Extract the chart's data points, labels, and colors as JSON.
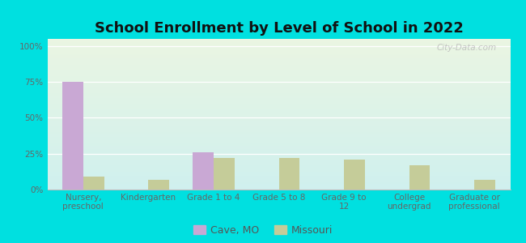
{
  "title": "School Enrollment by Level of School in 2022",
  "categories": [
    "Nursery,\npreschool",
    "Kindergarten",
    "Grade 1 to 4",
    "Grade 5 to 8",
    "Grade 9 to\n12",
    "College\nundergrad",
    "Graduate or\nprofessional"
  ],
  "cave_mo": [
    75,
    0,
    26,
    0,
    0,
    0,
    0
  ],
  "missouri": [
    9,
    7,
    22,
    22,
    21,
    17,
    7
  ],
  "cave_color": "#c9a8d4",
  "missouri_color": "#c5cc99",
  "title_fontsize": 13,
  "tick_fontsize": 7.5,
  "legend_labels": [
    "Cave, MO",
    "Missouri"
  ],
  "yticks": [
    0,
    25,
    50,
    75,
    100
  ],
  "ylim": [
    0,
    105
  ],
  "background_outer": "#00e0e0",
  "background_inner_top": "#eaf5e2",
  "background_inner_bottom": "#cff0ee",
  "watermark": "City-Data.com"
}
